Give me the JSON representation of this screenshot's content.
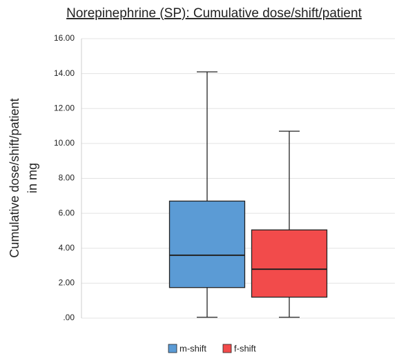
{
  "chart_data": {
    "type": "box",
    "title": "Norepinephrine (SP): Cumulative dose/shift/patient",
    "y_label": [
      "Cumulative dose/shift/patient",
      "in mg"
    ],
    "ylim": [
      0,
      16
    ],
    "yticks": [
      {
        "value": 0,
        "label": ".00"
      },
      {
        "value": 2,
        "label": "2.00"
      },
      {
        "value": 4,
        "label": "4.00"
      },
      {
        "value": 6,
        "label": "6.00"
      },
      {
        "value": 8,
        "label": "8.00"
      },
      {
        "value": 10,
        "label": "10.00"
      },
      {
        "value": 12,
        "label": "12.00"
      },
      {
        "value": 14,
        "label": "14.00"
      },
      {
        "value": 16,
        "label": "16.00"
      }
    ],
    "grid": true,
    "series": [
      {
        "name": "m-shift",
        "color": "#5b9bd5",
        "min": 0.05,
        "q1": 1.75,
        "median": 3.6,
        "q3": 6.7,
        "max": 14.1
      },
      {
        "name": "f-shift",
        "color": "#f24b4b",
        "min": 0.05,
        "q1": 1.2,
        "median": 2.8,
        "q3": 5.05,
        "max": 10.7
      }
    ]
  }
}
